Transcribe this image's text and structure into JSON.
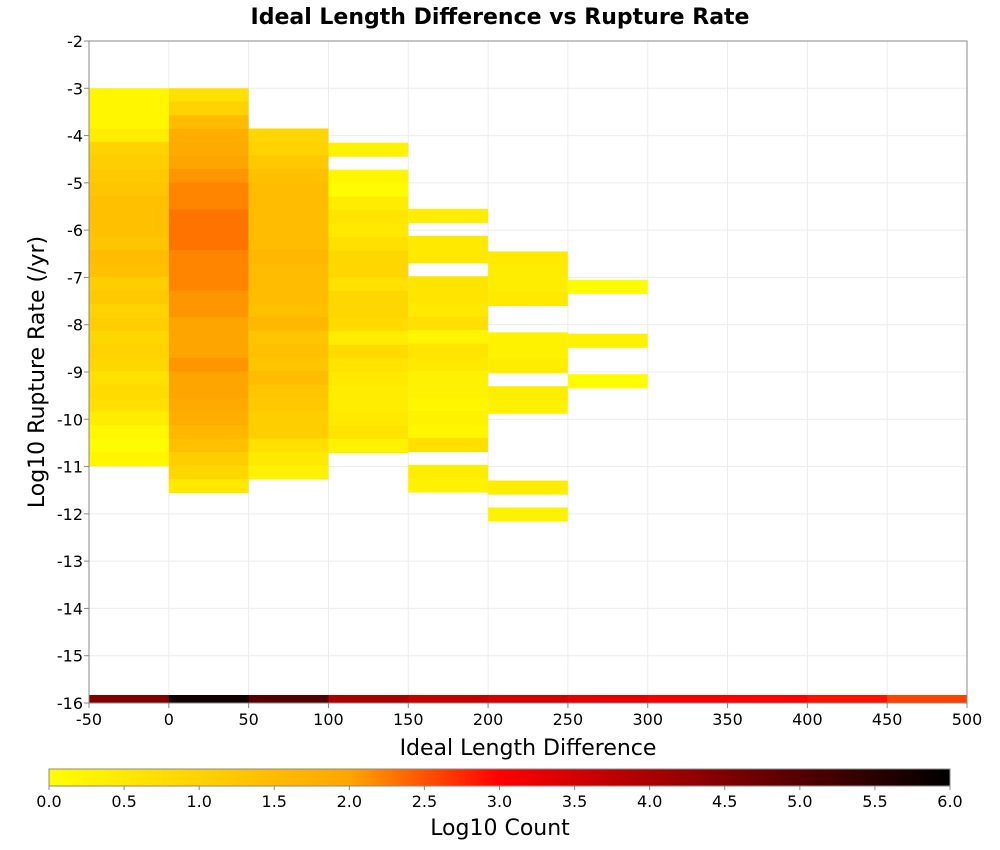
{
  "chart_data": {
    "type": "heatmap",
    "title": "Ideal Length Difference vs Rupture Rate",
    "xlabel": "Ideal Length Difference",
    "ylabel": "Log10 Rupture Rate (/yr)",
    "xlim": [
      -50,
      500
    ],
    "ylim": [
      -16,
      -2
    ],
    "x_ticks": [
      -50,
      0,
      50,
      100,
      150,
      200,
      250,
      300,
      350,
      400,
      450,
      500
    ],
    "y_ticks": [
      -2,
      -3,
      -4,
      -5,
      -6,
      -7,
      -8,
      -9,
      -10,
      -11,
      -12,
      -13,
      -14,
      -15,
      -16
    ],
    "x_bin_width": 50,
    "y_bin_height": 0.285,
    "grid": true,
    "colorbar": {
      "label": "Log10 Count",
      "min": 0.0,
      "max": 6.0,
      "ticks": [
        "0.0",
        "0.5",
        "1.0",
        "1.5",
        "2.0",
        "2.5",
        "3.0",
        "3.5",
        "4.0",
        "4.5",
        "5.0",
        "5.5",
        "6.0"
      ],
      "colors": [
        "#ffff00",
        "#ffa500",
        "#ff0000",
        "#000000"
      ]
    },
    "x_bin_starts": [
      -50,
      0,
      50,
      100,
      150,
      200,
      250
    ],
    "columns": [
      {
        "y_start": -3.0,
        "log10_counts": [
          0.2,
          0.2,
          0.2,
          0.4,
          1.0,
          1.1,
          1.2,
          1.3,
          1.4,
          1.4,
          1.4,
          1.3,
          1.5,
          1.4,
          1.1,
          1.2,
          1.0,
          1.1,
          0.9,
          1.0,
          0.9,
          0.7,
          0.8,
          0.7,
          0.4,
          0.2,
          0.1,
          0.2
        ]
      },
      {
        "y_start": -3.0,
        "log10_counts": [
          0.7,
          1.0,
          1.5,
          1.8,
          1.9,
          2.0,
          2.1,
          2.2,
          2.2,
          2.3,
          2.3,
          2.3,
          2.2,
          2.2,
          2.2,
          2.1,
          2.1,
          2.0,
          2.0,
          2.0,
          2.1,
          2.0,
          2.0,
          1.9,
          1.8,
          1.6,
          1.4,
          1.1,
          0.9,
          0.5
        ]
      },
      {
        "y_start": -3.85,
        "log10_counts": [
          0.9,
          1.0,
          1.2,
          1.4,
          1.5,
          1.5,
          1.5,
          1.5,
          1.5,
          1.6,
          1.5,
          1.5,
          1.5,
          1.4,
          1.6,
          1.3,
          1.4,
          1.3,
          1.5,
          1.3,
          1.2,
          1.1,
          1.1,
          0.7,
          0.5,
          0.3
        ]
      },
      {
        "y_start": -4.15,
        "log10_counts": [
          0.3,
          null,
          0.2,
          0.1,
          0.4,
          0.6,
          0.5,
          0.7,
          0.9,
          0.9,
          0.7,
          0.9,
          0.9,
          0.8,
          0.4,
          0.8,
          0.6,
          0.5,
          0.4,
          0.4,
          0.5,
          0.6,
          0.3
        ]
      },
      {
        "y_start": -5.55,
        "log10_counts": [
          0.4,
          null,
          0.5,
          0.5,
          null,
          0.6,
          0.6,
          0.5,
          0.7,
          0.2,
          0.6,
          0.5,
          0.3,
          0.3,
          0.2,
          0.3,
          0.2,
          0.7,
          null,
          0.4,
          0.3
        ]
      },
      {
        "y_start": -6.45,
        "log10_counts": [
          0.5,
          0.4,
          0.4,
          0.5,
          null,
          null,
          0.3,
          0.3,
          0.4,
          null,
          0.4,
          0.3,
          null,
          null,
          null,
          null,
          null,
          0.4,
          null,
          0.3
        ]
      },
      {
        "y_start": -7.05,
        "log10_counts": [
          0.1,
          null,
          null,
          null,
          0.3,
          null,
          null,
          0.1,
          null,
          null,
          null,
          null
        ]
      }
    ]
  }
}
